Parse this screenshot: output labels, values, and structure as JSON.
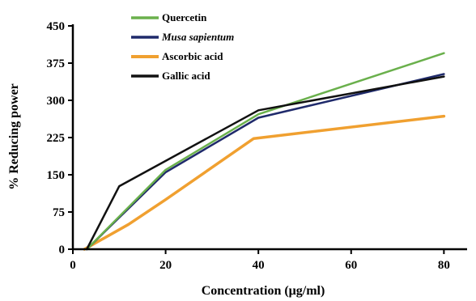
{
  "chart_data": {
    "type": "line",
    "xlabel": "Concentration (μg/ml)",
    "ylabel": "% Reducing power",
    "xlim": [
      0,
      85
    ],
    "ylim": [
      0,
      450
    ],
    "xticks": [
      0,
      20,
      40,
      60,
      80
    ],
    "yticks": [
      0,
      75,
      150,
      225,
      300,
      375,
      450
    ],
    "grid": false,
    "legend_position": "top-left",
    "series": [
      {
        "name": "Quercetin",
        "color": "#6ab04c",
        "italic": false,
        "points": [
          [
            3,
            0
          ],
          [
            20,
            160
          ],
          [
            40,
            272
          ],
          [
            80,
            395
          ]
        ]
      },
      {
        "name": "Musa sapientum",
        "color": "#1f2a6b",
        "italic": true,
        "points": [
          [
            3,
            0
          ],
          [
            20,
            155
          ],
          [
            40,
            265
          ],
          [
            80,
            353
          ]
        ]
      },
      {
        "name": "Ascorbic acid",
        "color": "#f0a030",
        "italic": false,
        "points": [
          [
            2.5,
            0
          ],
          [
            12,
            50
          ],
          [
            20,
            100
          ],
          [
            39,
            223
          ],
          [
            80,
            268
          ]
        ]
      },
      {
        "name": "Gallic acid",
        "color": "#111111",
        "italic": false,
        "points": [
          [
            3,
            0
          ],
          [
            10,
            127
          ],
          [
            40,
            280
          ],
          [
            80,
            348
          ]
        ]
      }
    ]
  }
}
